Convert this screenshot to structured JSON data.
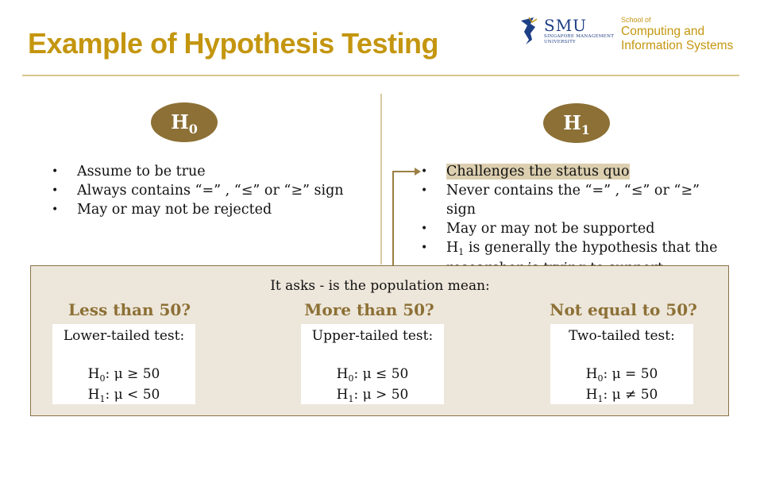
{
  "title": "Example of Hypothesis Testing",
  "logo": {
    "smu_name": "SMU",
    "smu_sub_line1": "SINGAPORE MANAGEMENT",
    "smu_sub_line2": "UNIVERSITY",
    "school_small": "School of",
    "school_line1": "Computing and",
    "school_line2": "Information Systems"
  },
  "null_hypothesis": {
    "label": "H",
    "label_sub": "0",
    "bullets": [
      "Assume to be true",
      "Always contains “=” , “≤” or “≥” sign",
      "May or may not be rejected"
    ]
  },
  "alt_hypothesis": {
    "label": "H",
    "label_sub": "1",
    "bullets": [
      "Challenges the status quo",
      "Never contains the “=” , “≤” or “≥” sign",
      "May or may not be supported"
    ],
    "last_bullet_prefix": "H",
    "last_bullet_sub": "1",
    "last_bullet_rest": " is generally the hypothesis that the researcher is trying to support"
  },
  "panel": {
    "question": "It asks - is the population mean:",
    "columns": [
      {
        "heading": "Less than 50?",
        "test": "Lower-tailed test:",
        "h0_rest": ": μ ≥ 50",
        "h1_rest": ": μ < 50"
      },
      {
        "heading": "More than 50?",
        "test": "Upper-tailed test:",
        "h0_rest": ": μ ≤ 50",
        "h1_rest": ": μ > 50"
      },
      {
        "heading": "Not equal to 50?",
        "test": "Two-tailed test:",
        "h0_rest": ": μ = 50",
        "h1_rest": ": μ ≠ 50"
      }
    ],
    "h_letter": "H",
    "h0_sub": "0",
    "h1_sub": "1"
  },
  "colors": {
    "gold": "#c4960f",
    "brown": "#8c7035",
    "panel_bg": "#ede6da",
    "smu_blue": "#1d3f85"
  }
}
